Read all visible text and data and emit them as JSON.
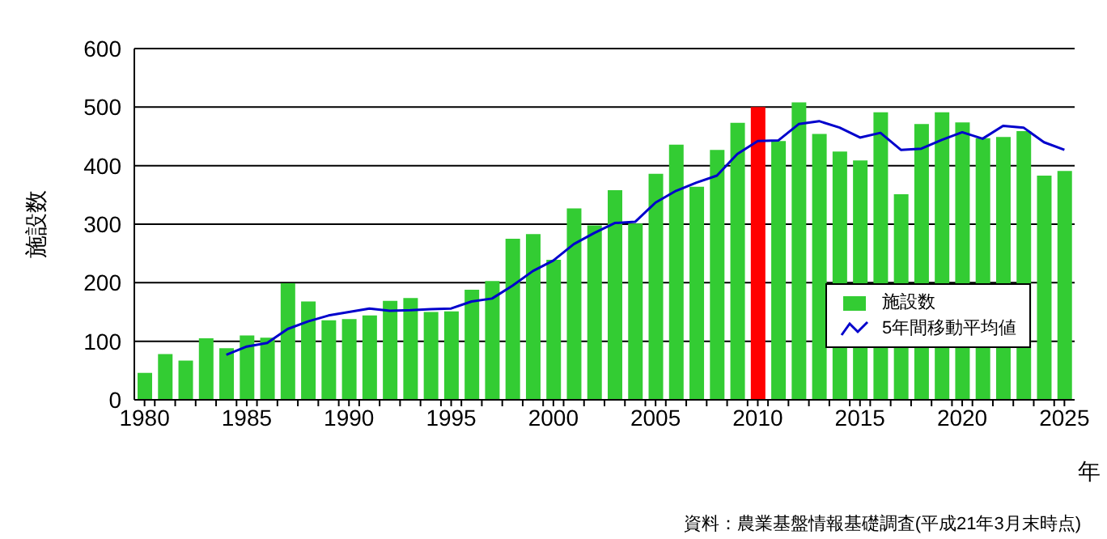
{
  "chart_data": {
    "type": "bar",
    "ylabel": "施設数",
    "xlabel": "年",
    "annotations": [
      "資料：農業基盤情報基礎調査(平成21年3月末時点)"
    ],
    "x": [
      1980,
      1981,
      1982,
      1983,
      1984,
      1985,
      1986,
      1987,
      1988,
      1989,
      1990,
      1991,
      1992,
      1993,
      1994,
      1995,
      1996,
      1997,
      1998,
      1999,
      2000,
      2001,
      2002,
      2003,
      2004,
      2005,
      2006,
      2007,
      2008,
      2009,
      2010,
      2011,
      2012,
      2013,
      2014,
      2015,
      2016,
      2017,
      2018,
      2019,
      2020,
      2021,
      2022,
      2023,
      2024,
      2025
    ],
    "series": [
      {
        "name": "施設数",
        "colors": [
          "#33cc33",
          "#33cc33",
          "#33cc33",
          "#33cc33",
          "#33cc33",
          "#33cc33",
          "#33cc33",
          "#33cc33",
          "#33cc33",
          "#33cc33",
          "#33cc33",
          "#33cc33",
          "#33cc33",
          "#33cc33",
          "#33cc33",
          "#33cc33",
          "#33cc33",
          "#33cc33",
          "#33cc33",
          "#33cc33",
          "#33cc33",
          "#33cc33",
          "#33cc33",
          "#33cc33",
          "#33cc33",
          "#33cc33",
          "#33cc33",
          "#33cc33",
          "#33cc33",
          "#33cc33",
          "#ff0000",
          "#33cc33",
          "#33cc33",
          "#33cc33",
          "#33cc33",
          "#33cc33",
          "#33cc33",
          "#33cc33",
          "#33cc33",
          "#33cc33",
          "#33cc33",
          "#33cc33",
          "#33cc33",
          "#33cc33",
          "#33cc33",
          "#33cc33"
        ],
        "values": [
          46,
          78,
          67,
          105,
          88,
          110,
          106,
          199,
          168,
          136,
          138,
          144,
          169,
          174,
          150,
          151,
          188,
          203,
          275,
          283,
          239,
          327,
          298,
          358,
          301,
          386,
          436,
          364,
          427,
          473,
          500,
          442,
          508,
          454,
          424,
          409,
          491,
          351,
          471,
          491,
          474,
          447,
          449,
          459,
          383,
          391
        ]
      },
      {
        "name": "5年間移動平均値",
        "type": "line",
        "color": "#0000cc",
        "values": [
          null,
          null,
          null,
          null,
          77,
          91,
          97,
          121,
          134,
          144,
          150,
          156,
          152,
          153,
          155,
          156,
          168,
          173,
          195,
          220,
          238,
          266,
          285,
          302,
          304,
          337,
          357,
          371,
          383,
          420,
          442,
          443,
          471,
          476,
          465,
          448,
          456,
          427,
          429,
          444,
          457,
          446,
          468,
          465,
          440,
          427
        ]
      }
    ],
    "xlim": [
      1979.5,
      2025.5
    ],
    "xticks": [
      1980,
      {
        "value": 1980.5,
        "label": null
      },
      {
        "value": 1981.5,
        "label": null
      },
      {
        "value": 1982.5,
        "label": null
      },
      {
        "value": 1983.5,
        "label": null
      },
      {
        "value": 1984.5,
        "label": null
      },
      1985,
      {
        "value": 1985.5,
        "label": null
      },
      {
        "value": 1986.5,
        "label": null
      },
      {
        "value": 1987.5,
        "label": null
      },
      {
        "value": 1988.5,
        "label": null
      },
      {
        "value": 1989.5,
        "label": null
      },
      1990,
      {
        "value": 1990.5,
        "label": null
      },
      {
        "value": 1991.5,
        "label": null
      },
      {
        "value": 1992.5,
        "label": null
      },
      {
        "value": 1993.5,
        "label": null
      },
      {
        "value": 1994.5,
        "label": null
      },
      1995,
      {
        "value": 1995.5,
        "label": null
      },
      {
        "value": 1996.5,
        "label": null
      },
      {
        "value": 1997.5,
        "label": null
      },
      {
        "value": 1998.5,
        "label": null
      },
      {
        "value": 1999.5,
        "label": null
      },
      2000,
      {
        "value": 2000.5,
        "label": null
      },
      {
        "value": 2001.5,
        "label": null
      },
      {
        "value": 2002.5,
        "label": null
      },
      {
        "value": 2003.5,
        "label": null
      },
      {
        "value": 2004.5,
        "label": null
      },
      2005,
      {
        "value": 2005.5,
        "label": null
      },
      {
        "value": 2006.5,
        "label": null
      },
      {
        "value": 2007.5,
        "label": null
      },
      {
        "value": 2008.5,
        "label": null
      },
      {
        "value": 2009.5,
        "label": null
      },
      2010,
      {
        "value": 2010.5,
        "label": null
      },
      {
        "value": 2011.5,
        "label": null
      },
      {
        "value": 2012.5,
        "label": null
      },
      {
        "value": 2013.5,
        "label": null
      },
      {
        "value": 2014.5,
        "label": null
      },
      2015,
      {
        "value": 2015.5,
        "label": null
      },
      {
        "value": 2016.5,
        "label": null
      },
      {
        "value": 2017.5,
        "label": null
      },
      {
        "value": 2018.5,
        "label": null
      },
      {
        "value": 2019.5,
        "label": null
      },
      2020,
      {
        "value": 2020.5,
        "label": null
      },
      {
        "value": 2021.5,
        "label": null
      },
      {
        "value": 2022.5,
        "label": null
      },
      {
        "value": 2023.5,
        "label": null
      },
      {
        "value": 2024.5,
        "label": null
      },
      2025
    ],
    "ylim": [
      0,
      600
    ],
    "yticks": [
      0,
      100,
      200,
      300,
      400,
      500,
      600
    ],
    "grid": "y",
    "legend": "right",
    "marker": "none",
    "line_style": "solid"
  }
}
